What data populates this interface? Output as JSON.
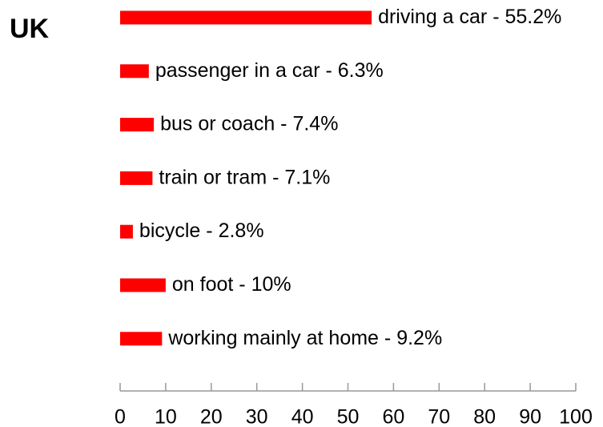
{
  "chart_data": {
    "type": "bar",
    "orientation": "horizontal",
    "title": "UK",
    "categories": [
      "driving a car",
      "passenger in a car",
      "bus or coach",
      "train or tram",
      "bicycle",
      "on foot",
      "working mainly at home"
    ],
    "values": [
      55.2,
      6.3,
      7.4,
      7.1,
      2.8,
      10,
      9.2
    ],
    "value_labels": [
      "55.2%",
      "6.3%",
      "7.4%",
      "7.1%",
      "2.8%",
      "10%",
      "9.2%"
    ],
    "label_separator": " - ",
    "color": "#ff0000",
    "xlim": [
      0,
      100
    ],
    "xticks": [
      0,
      10,
      20,
      30,
      40,
      50,
      60,
      70,
      80,
      90,
      100
    ]
  }
}
